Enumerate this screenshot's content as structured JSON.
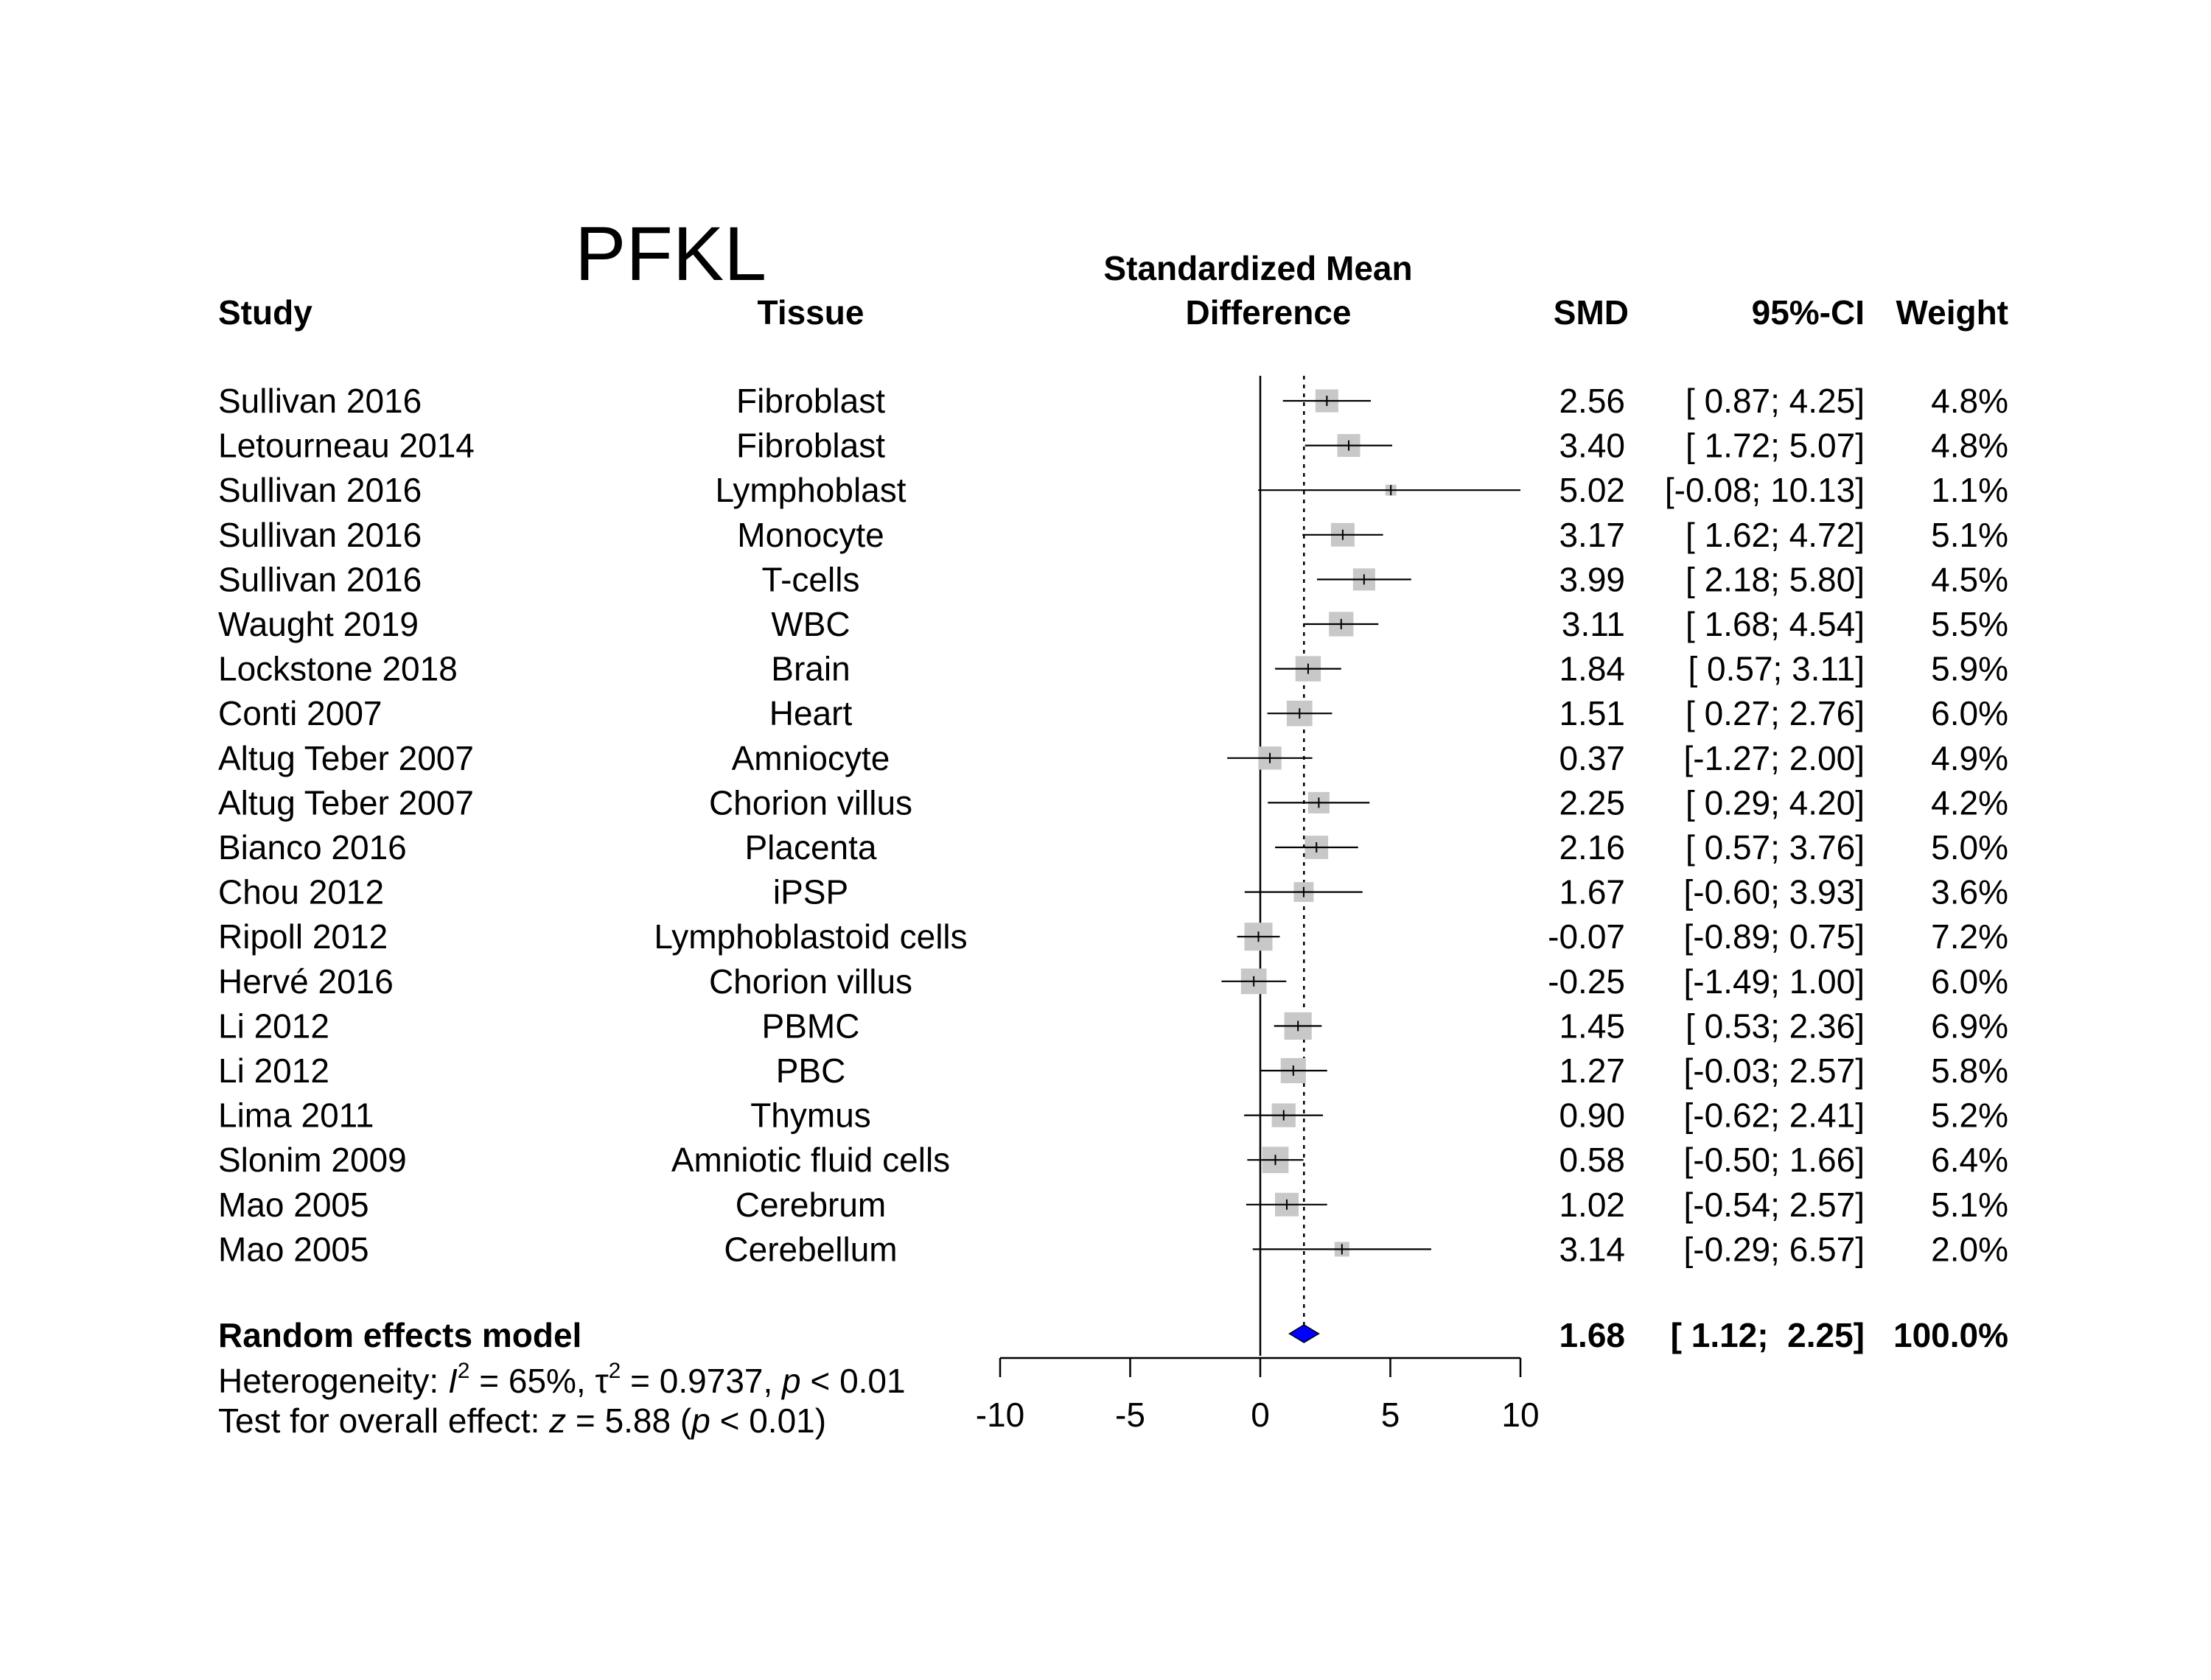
{
  "chart_data": {
    "type": "forest",
    "title": "PFKL",
    "headers": {
      "study": "Study",
      "tissue": "Tissue",
      "effect_line1": "Standardized Mean",
      "effect_line2": "Difference",
      "smd": "SMD",
      "ci": "95%-CI",
      "weight": "Weight"
    },
    "studies": [
      {
        "study": "Sullivan 2016",
        "tissue": "Fibroblast",
        "smd": 2.56,
        "lower": 0.87,
        "upper": 4.25,
        "smd_text": "2.56",
        "ci_text": "[ 0.87;  4.25]",
        "weight": 4.8,
        "weight_text": "4.8%"
      },
      {
        "study": "Letourneau 2014",
        "tissue": "Fibroblast",
        "smd": 3.4,
        "lower": 1.72,
        "upper": 5.07,
        "smd_text": "3.40",
        "ci_text": "[ 1.72;  5.07]",
        "weight": 4.8,
        "weight_text": "4.8%"
      },
      {
        "study": "Sullivan 2016",
        "tissue": "Lymphoblast",
        "smd": 5.02,
        "lower": -0.08,
        "upper": 10.13,
        "smd_text": "5.02",
        "ci_text": "[-0.08; 10.13]",
        "weight": 1.1,
        "weight_text": "1.1%"
      },
      {
        "study": "Sullivan 2016",
        "tissue": "Monocyte",
        "smd": 3.17,
        "lower": 1.62,
        "upper": 4.72,
        "smd_text": "3.17",
        "ci_text": "[ 1.62;  4.72]",
        "weight": 5.1,
        "weight_text": "5.1%"
      },
      {
        "study": "Sullivan 2016",
        "tissue": "T-cells",
        "smd": 3.99,
        "lower": 2.18,
        "upper": 5.8,
        "smd_text": "3.99",
        "ci_text": "[ 2.18;  5.80]",
        "weight": 4.5,
        "weight_text": "4.5%"
      },
      {
        "study": "Waught 2019",
        "tissue": "WBC",
        "smd": 3.11,
        "lower": 1.68,
        "upper": 4.54,
        "smd_text": "3.11",
        "ci_text": "[ 1.68;  4.54]",
        "weight": 5.5,
        "weight_text": "5.5%"
      },
      {
        "study": "Lockstone 2018",
        "tissue": "Brain",
        "smd": 1.84,
        "lower": 0.57,
        "upper": 3.11,
        "smd_text": "1.84",
        "ci_text": "[ 0.57;  3.11]",
        "weight": 5.9,
        "weight_text": "5.9%"
      },
      {
        "study": "Conti 2007",
        "tissue": "Heart",
        "smd": 1.51,
        "lower": 0.27,
        "upper": 2.76,
        "smd_text": "1.51",
        "ci_text": "[ 0.27;  2.76]",
        "weight": 6.0,
        "weight_text": "6.0%"
      },
      {
        "study": "Altug Teber 2007",
        "tissue": "Amniocyte",
        "smd": 0.37,
        "lower": -1.27,
        "upper": 2.0,
        "smd_text": "0.37",
        "ci_text": "[-1.27;  2.00]",
        "weight": 4.9,
        "weight_text": "4.9%"
      },
      {
        "study": "Altug Teber 2007",
        "tissue": "Chorion villus",
        "smd": 2.25,
        "lower": 0.29,
        "upper": 4.2,
        "smd_text": "2.25",
        "ci_text": "[ 0.29;  4.20]",
        "weight": 4.2,
        "weight_text": "4.2%"
      },
      {
        "study": "Bianco 2016",
        "tissue": "Placenta",
        "smd": 2.16,
        "lower": 0.57,
        "upper": 3.76,
        "smd_text": "2.16",
        "ci_text": "[ 0.57;  3.76]",
        "weight": 5.0,
        "weight_text": "5.0%"
      },
      {
        "study": "Chou 2012",
        "tissue": "iPSP",
        "smd": 1.67,
        "lower": -0.6,
        "upper": 3.93,
        "smd_text": "1.67",
        "ci_text": "[-0.60;  3.93]",
        "weight": 3.6,
        "weight_text": "3.6%"
      },
      {
        "study": "Ripoll 2012",
        "tissue": "Lymphoblastoid cells",
        "smd": -0.07,
        "lower": -0.89,
        "upper": 0.75,
        "smd_text": "-0.07",
        "ci_text": "[-0.89;  0.75]",
        "weight": 7.2,
        "weight_text": "7.2%"
      },
      {
        "study": "Hervé 2016",
        "tissue": "Chorion villus",
        "smd": -0.25,
        "lower": -1.49,
        "upper": 1.0,
        "smd_text": "-0.25",
        "ci_text": "[-1.49;  1.00]",
        "weight": 6.0,
        "weight_text": "6.0%"
      },
      {
        "study": "Li 2012",
        "tissue": "PBMC",
        "smd": 1.45,
        "lower": 0.53,
        "upper": 2.36,
        "smd_text": "1.45",
        "ci_text": "[ 0.53;  2.36]",
        "weight": 6.9,
        "weight_text": "6.9%"
      },
      {
        "study": "Li 2012",
        "tissue": "PBC",
        "smd": 1.27,
        "lower": -0.03,
        "upper": 2.57,
        "smd_text": "1.27",
        "ci_text": "[-0.03;  2.57]",
        "weight": 5.8,
        "weight_text": "5.8%"
      },
      {
        "study": "Lima 2011",
        "tissue": "Thymus",
        "smd": 0.9,
        "lower": -0.62,
        "upper": 2.41,
        "smd_text": "0.90",
        "ci_text": "[-0.62;  2.41]",
        "weight": 5.2,
        "weight_text": "5.2%"
      },
      {
        "study": "Slonim 2009",
        "tissue": "Amniotic fluid cells",
        "smd": 0.58,
        "lower": -0.5,
        "upper": 1.66,
        "smd_text": "0.58",
        "ci_text": "[-0.50;  1.66]",
        "weight": 6.4,
        "weight_text": "6.4%"
      },
      {
        "study": "Mao 2005",
        "tissue": "Cerebrum",
        "smd": 1.02,
        "lower": -0.54,
        "upper": 2.57,
        "smd_text": "1.02",
        "ci_text": "[-0.54;  2.57]",
        "weight": 5.1,
        "weight_text": "5.1%"
      },
      {
        "study": "Mao 2005",
        "tissue": "Cerebellum",
        "smd": 3.14,
        "lower": -0.29,
        "upper": 6.57,
        "smd_text": "3.14",
        "ci_text": "[-0.29;  6.57]",
        "weight": 2.0,
        "weight_text": "2.0%"
      }
    ],
    "summary": {
      "label": "Random effects model",
      "smd": 1.68,
      "lower": 1.12,
      "upper": 2.25,
      "smd_text": "1.68",
      "ci_text": "[ 1.12;  2.25]",
      "weight_text": "100.0%"
    },
    "heterogeneity": {
      "prefix": "Heterogeneity: ",
      "i2_symbol": "I",
      "i2_value": " = 65%, ",
      "tau_symbol": "τ",
      "tau_value": " = 0.9737, ",
      "p_symbol": "p",
      "p_value": " < 0.01"
    },
    "overall_test": {
      "prefix": "Test for overall effect: ",
      "z_symbol": "z",
      "z_value": " = 5.88 (",
      "p_symbol": "p",
      "p_value": " < 0.01)"
    },
    "x_axis": {
      "range": [
        -10,
        10
      ],
      "ticks": [
        -10,
        -5,
        0,
        5,
        10
      ],
      "tick_labels": [
        "-10",
        "-5",
        "0",
        "5",
        "10"
      ]
    },
    "null_line": 0,
    "summary_line": 1.68,
    "colors": {
      "square": "#c8c8c8",
      "diamond": "#0000ff",
      "ink": "#000000"
    }
  }
}
